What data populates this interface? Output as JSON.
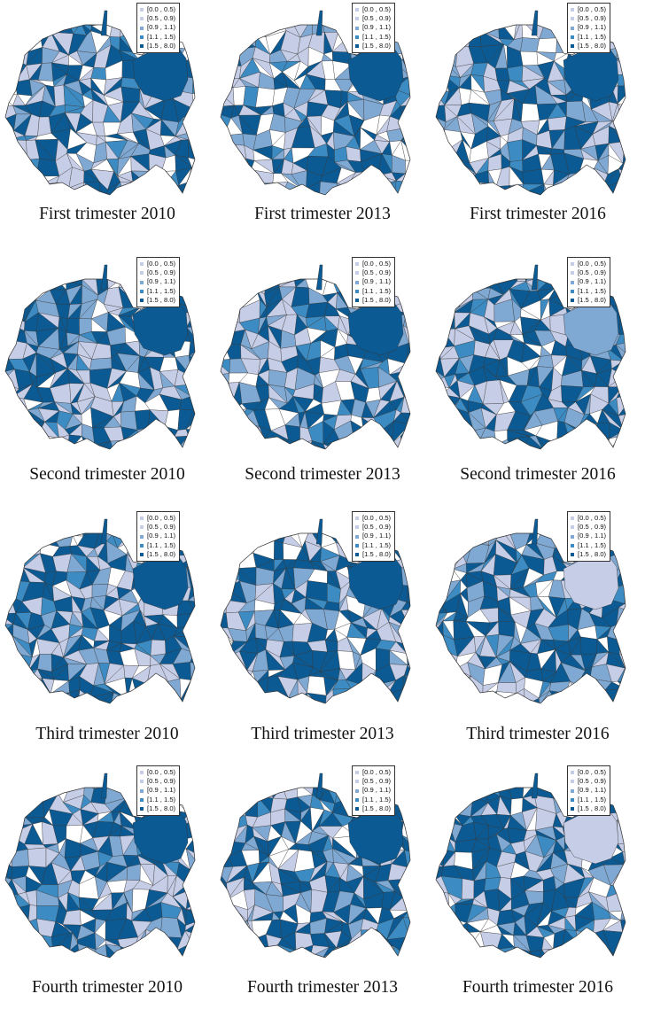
{
  "legend": {
    "classes": [
      {
        "label": "[0.0 , 0.5)",
        "color": "#c6cde6"
      },
      {
        "label": "[0.5 , 0.9)",
        "color": "#c6cde6"
      },
      {
        "label": "[0.9 , 1.1)",
        "color": "#7fa8d2"
      },
      {
        "label": "[1.1 , 1.5)",
        "color": "#3c8cc3"
      },
      {
        "label": "[1.5 , 8.0)",
        "color": "#0b5a93"
      }
    ]
  },
  "palette": {
    "none": "#ffffff",
    "light": "#c6cde6",
    "mid": "#7fa8d2",
    "bright": "#3c8cc3",
    "dark": "#0b5a93",
    "border": "#333333"
  },
  "panels": [
    {
      "caption": "First trimester 2010"
    },
    {
      "caption": "First trimester 2013"
    },
    {
      "caption": "First trimester 2016"
    },
    {
      "caption": "Second trimester 2010"
    },
    {
      "caption": "Second trimester 2013"
    },
    {
      "caption": "Second trimester 2016"
    },
    {
      "caption": "Third trimester 2010"
    },
    {
      "caption": "Third trimester 2013"
    },
    {
      "caption": "Third trimester 2016"
    },
    {
      "caption": "Fourth trimester 2010"
    },
    {
      "caption": "Fourth trimester 2013"
    },
    {
      "caption": "Fourth trimester 2016"
    }
  ]
}
